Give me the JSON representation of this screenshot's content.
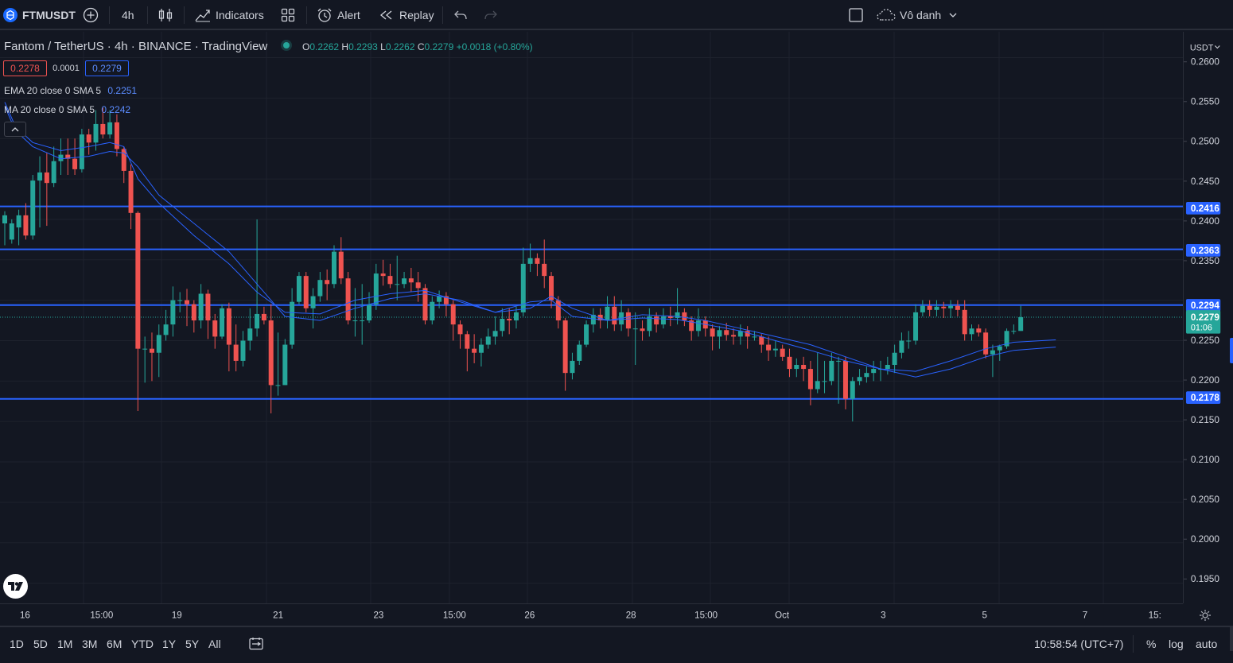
{
  "toolbar": {
    "symbol": "FTMUSDT",
    "interval": "4h",
    "indicators_label": "Indicators",
    "alert_label": "Alert",
    "replay_label": "Replay",
    "layout_name": "Vô danh"
  },
  "legend": {
    "title": "Fantom / TetherUS · 4h · BINANCE · TradingView",
    "o_label": "O",
    "o": "0.2262",
    "h_label": "H",
    "h": "0.2293",
    "l_label": "L",
    "l": "0.2262",
    "c_label": "C",
    "c": "0.2279",
    "change": "+0.0018 (+0.80%)",
    "bid": "0.2278",
    "spread": "0.0001",
    "ask": "0.2279",
    "ema_label": "EMA 20 close 0 SMA 5",
    "ema_value": "0.2251",
    "ma_label": "MA 20 close 0 SMA 5",
    "ma_value": "0.2242"
  },
  "price_scale": {
    "currency": "USDT",
    "ticks": [
      "0.2600",
      "0.2550",
      "0.2500",
      "0.2450",
      "0.2400",
      "0.2350",
      "0.2250",
      "0.2200",
      "0.2150",
      "0.2100",
      "0.2050",
      "0.2000",
      "0.1950"
    ],
    "hline_labels": [
      "0.2416",
      "0.2363",
      "0.2294",
      "0.2178"
    ],
    "current_price": "0.2279",
    "countdown": "01:06"
  },
  "time_axis": {
    "labels": [
      "16",
      "15:00",
      "19",
      "21",
      "23",
      "15:00",
      "26",
      "28",
      "15:00",
      "Oct",
      "3",
      "5",
      "7",
      "15:"
    ]
  },
  "bottombar": {
    "ranges": [
      "1D",
      "5D",
      "1M",
      "3M",
      "6M",
      "YTD",
      "1Y",
      "5Y",
      "All"
    ],
    "time": "10:58:54 (UTC+7)",
    "percent": "%",
    "log": "log",
    "auto": "auto"
  },
  "colors": {
    "background": "#131722",
    "up": "#26a69a",
    "down": "#ef5350",
    "hline": "#2962ff",
    "ma": "#2962ff",
    "text": "#d1d4dc"
  },
  "chart_data": {
    "type": "candlestick",
    "symbol": "FTMUSDT",
    "interval": "4h",
    "ylim": [
      0.1925,
      0.2632
    ],
    "horizontal_lines": [
      0.2416,
      0.2363,
      0.2294,
      0.2178
    ],
    "candles": [
      [
        0.2395,
        0.2405,
        0.2368,
        0.241
      ],
      [
        0.2375,
        0.2395,
        0.237,
        0.24
      ],
      [
        0.239,
        0.2405,
        0.2368,
        0.2412
      ],
      [
        0.2405,
        0.238,
        0.2375,
        0.242
      ],
      [
        0.238,
        0.2448,
        0.2375,
        0.2455
      ],
      [
        0.2448,
        0.2458,
        0.239,
        0.2478
      ],
      [
        0.2458,
        0.2445,
        0.2392,
        0.2482
      ],
      [
        0.2445,
        0.2472,
        0.244,
        0.249
      ],
      [
        0.2472,
        0.248,
        0.2455,
        0.25
      ],
      [
        0.248,
        0.2475,
        0.2455,
        0.25
      ],
      [
        0.2475,
        0.2462,
        0.2455,
        0.25
      ],
      [
        0.2462,
        0.2505,
        0.2458,
        0.2512
      ],
      [
        0.2505,
        0.2495,
        0.248,
        0.2512
      ],
      [
        0.2495,
        0.2518,
        0.2485,
        0.2535
      ],
      [
        0.2518,
        0.2505,
        0.25,
        0.2538
      ],
      [
        0.2505,
        0.252,
        0.25,
        0.2535
      ],
      [
        0.252,
        0.2487,
        0.2478,
        0.253
      ],
      [
        0.2487,
        0.246,
        0.2445,
        0.249
      ],
      [
        0.246,
        0.2408,
        0.2388,
        0.2468
      ],
      [
        0.2408,
        0.224,
        0.2163,
        0.241
      ],
      [
        0.224,
        0.224,
        0.2198,
        0.2255
      ],
      [
        0.224,
        0.2235,
        0.22,
        0.226
      ],
      [
        0.2235,
        0.2257,
        0.2205,
        0.227
      ],
      [
        0.2257,
        0.227,
        0.225,
        0.2288
      ],
      [
        0.227,
        0.23,
        0.2255,
        0.2317
      ],
      [
        0.23,
        0.23,
        0.2285,
        0.231
      ],
      [
        0.23,
        0.2295,
        0.2268,
        0.2314
      ],
      [
        0.2295,
        0.2275,
        0.226,
        0.23
      ],
      [
        0.2275,
        0.2308,
        0.2265,
        0.232
      ],
      [
        0.2308,
        0.2275,
        0.2252,
        0.2313
      ],
      [
        0.2275,
        0.2255,
        0.224,
        0.2283
      ],
      [
        0.2255,
        0.229,
        0.2252,
        0.2295
      ],
      [
        0.229,
        0.2245,
        0.2212,
        0.2297
      ],
      [
        0.2245,
        0.2225,
        0.2212,
        0.227
      ],
      [
        0.2225,
        0.225,
        0.2218,
        0.2262
      ],
      [
        0.225,
        0.2265,
        0.2238,
        0.229
      ],
      [
        0.2265,
        0.2283,
        0.2255,
        0.24
      ],
      [
        0.2283,
        0.2275,
        0.227,
        0.2292
      ],
      [
        0.2275,
        0.2195,
        0.216,
        0.2295
      ],
      [
        0.2195,
        0.2195,
        0.2182,
        0.226
      ],
      [
        0.2195,
        0.2245,
        0.2195,
        0.2252
      ],
      [
        0.2245,
        0.2298,
        0.224,
        0.2315
      ],
      [
        0.2298,
        0.233,
        0.2295,
        0.2335
      ],
      [
        0.233,
        0.229,
        0.2285,
        0.2335
      ],
      [
        0.229,
        0.2305,
        0.2265,
        0.2315
      ],
      [
        0.2305,
        0.2325,
        0.2298,
        0.2335
      ],
      [
        0.2325,
        0.232,
        0.23,
        0.2338
      ],
      [
        0.232,
        0.236,
        0.2315,
        0.2368
      ],
      [
        0.236,
        0.2327,
        0.232,
        0.2378
      ],
      [
        0.2327,
        0.2275,
        0.227,
        0.2335
      ],
      [
        0.2275,
        0.2275,
        0.2255,
        0.2315
      ],
      [
        0.2275,
        0.2275,
        0.2245,
        0.232
      ],
      [
        0.2275,
        0.2295,
        0.2272,
        0.231
      ],
      [
        0.2295,
        0.2333,
        0.2288,
        0.2345
      ],
      [
        0.2333,
        0.233,
        0.2318,
        0.235
      ],
      [
        0.233,
        0.232,
        0.2315,
        0.2345
      ],
      [
        0.232,
        0.232,
        0.23,
        0.2355
      ],
      [
        0.232,
        0.2327,
        0.2315,
        0.2335
      ],
      [
        0.2327,
        0.2322,
        0.231,
        0.234
      ],
      [
        0.2322,
        0.2315,
        0.2298,
        0.2335
      ],
      [
        0.2315,
        0.2275,
        0.227,
        0.232
      ],
      [
        0.2275,
        0.2298,
        0.227,
        0.2305
      ],
      [
        0.2298,
        0.2305,
        0.229,
        0.2312
      ],
      [
        0.2305,
        0.2295,
        0.228,
        0.231
      ],
      [
        0.2295,
        0.227,
        0.225,
        0.23
      ],
      [
        0.227,
        0.2258,
        0.224,
        0.2275
      ],
      [
        0.2258,
        0.224,
        0.2212,
        0.2262
      ],
      [
        0.224,
        0.2235,
        0.2222,
        0.2258
      ],
      [
        0.2235,
        0.2245,
        0.2218,
        0.2253
      ],
      [
        0.2245,
        0.2255,
        0.224,
        0.2265
      ],
      [
        0.2255,
        0.2262,
        0.2245,
        0.228
      ],
      [
        0.2262,
        0.2277,
        0.2255,
        0.229
      ],
      [
        0.2277,
        0.2275,
        0.2258,
        0.229
      ],
      [
        0.2275,
        0.2285,
        0.2265,
        0.2292
      ],
      [
        0.2285,
        0.2345,
        0.228,
        0.2365
      ],
      [
        0.2345,
        0.2352,
        0.2335,
        0.237
      ],
      [
        0.2352,
        0.2345,
        0.233,
        0.2358
      ],
      [
        0.2345,
        0.233,
        0.2315,
        0.2375
      ],
      [
        0.233,
        0.23,
        0.229,
        0.2335
      ],
      [
        0.23,
        0.2275,
        0.2265,
        0.2305
      ],
      [
        0.2275,
        0.221,
        0.2188,
        0.2278
      ],
      [
        0.221,
        0.2225,
        0.2202,
        0.2235
      ],
      [
        0.2225,
        0.2245,
        0.222,
        0.225
      ],
      [
        0.2245,
        0.227,
        0.2242,
        0.2275
      ],
      [
        0.227,
        0.2282,
        0.226,
        0.229
      ],
      [
        0.2282,
        0.2275,
        0.2265,
        0.229
      ],
      [
        0.2275,
        0.2292,
        0.2265,
        0.2305
      ],
      [
        0.2292,
        0.227,
        0.2262,
        0.2305
      ],
      [
        0.227,
        0.2285,
        0.2262,
        0.23
      ],
      [
        0.2285,
        0.2265,
        0.2255,
        0.229
      ],
      [
        0.2265,
        0.2265,
        0.222,
        0.2285
      ],
      [
        0.2265,
        0.2262,
        0.225,
        0.2275
      ],
      [
        0.2262,
        0.228,
        0.2255,
        0.229
      ],
      [
        0.228,
        0.227,
        0.226,
        0.2285
      ],
      [
        0.227,
        0.228,
        0.2265,
        0.229
      ],
      [
        0.228,
        0.2278,
        0.2268,
        0.2292
      ],
      [
        0.2278,
        0.2285,
        0.227,
        0.2315
      ],
      [
        0.2285,
        0.2275,
        0.2268,
        0.229
      ],
      [
        0.2275,
        0.2262,
        0.225,
        0.228
      ],
      [
        0.2262,
        0.2275,
        0.2255,
        0.229
      ],
      [
        0.2275,
        0.2265,
        0.2255,
        0.228
      ],
      [
        0.2265,
        0.2255,
        0.2238,
        0.227
      ],
      [
        0.2255,
        0.2263,
        0.224,
        0.2268
      ],
      [
        0.2263,
        0.2257,
        0.225,
        0.2272
      ],
      [
        0.2257,
        0.2255,
        0.2245,
        0.2265
      ],
      [
        0.2255,
        0.2262,
        0.2245,
        0.227
      ],
      [
        0.2262,
        0.2255,
        0.224,
        0.2268
      ],
      [
        0.2255,
        0.2255,
        0.225,
        0.2262
      ],
      [
        0.2255,
        0.2245,
        0.2235,
        0.2258
      ],
      [
        0.2245,
        0.2238,
        0.2225,
        0.2255
      ],
      [
        0.2238,
        0.224,
        0.223,
        0.225
      ],
      [
        0.224,
        0.223,
        0.2225,
        0.2245
      ],
      [
        0.223,
        0.2215,
        0.2205,
        0.224
      ],
      [
        0.2215,
        0.222,
        0.2205,
        0.2228
      ],
      [
        0.222,
        0.2215,
        0.22,
        0.223
      ],
      [
        0.2215,
        0.219,
        0.217,
        0.2225
      ],
      [
        0.219,
        0.22,
        0.2185,
        0.2235
      ],
      [
        0.22,
        0.22,
        0.2185,
        0.2225
      ],
      [
        0.22,
        0.2225,
        0.2195,
        0.2235
      ],
      [
        0.2225,
        0.2225,
        0.2172,
        0.223
      ],
      [
        0.2225,
        0.2178,
        0.2165,
        0.223
      ],
      [
        0.2178,
        0.22,
        0.215,
        0.2205
      ],
      [
        0.22,
        0.2205,
        0.2195,
        0.2215
      ],
      [
        0.2205,
        0.221,
        0.2198,
        0.2218
      ],
      [
        0.221,
        0.2215,
        0.22,
        0.2225
      ],
      [
        0.2215,
        0.2215,
        0.22,
        0.2225
      ],
      [
        0.2215,
        0.222,
        0.2208,
        0.223
      ],
      [
        0.222,
        0.2235,
        0.221,
        0.2245
      ],
      [
        0.2235,
        0.225,
        0.2228,
        0.226
      ],
      [
        0.225,
        0.225,
        0.224,
        0.2262
      ],
      [
        0.225,
        0.2285,
        0.2245,
        0.2295
      ],
      [
        0.2285,
        0.2293,
        0.228,
        0.23
      ],
      [
        0.2293,
        0.2288,
        0.228,
        0.23
      ],
      [
        0.2288,
        0.2292,
        0.228,
        0.23
      ],
      [
        0.2292,
        0.229,
        0.2278,
        0.2298
      ],
      [
        0.229,
        0.2293,
        0.2278,
        0.23
      ],
      [
        0.2293,
        0.2288,
        0.228,
        0.23
      ],
      [
        0.2288,
        0.2258,
        0.225,
        0.23
      ],
      [
        0.2258,
        0.2265,
        0.225,
        0.227
      ],
      [
        0.2265,
        0.226,
        0.2255,
        0.227
      ],
      [
        0.226,
        0.2233,
        0.2228,
        0.2265
      ],
      [
        0.2233,
        0.2238,
        0.2205,
        0.2245
      ],
      [
        0.2238,
        0.2243,
        0.2225,
        0.2245
      ],
      [
        0.2243,
        0.2262,
        0.224,
        0.2265
      ],
      [
        0.2262,
        0.2262,
        0.2258,
        0.227
      ],
      [
        0.2262,
        0.2279,
        0.2262,
        0.2293
      ]
    ],
    "ema20": [
      [
        0,
        0.2545
      ],
      [
        1.5,
        0.2515
      ],
      [
        4,
        0.2495
      ],
      [
        8,
        0.2485
      ],
      [
        12,
        0.249
      ],
      [
        15,
        0.2495
      ],
      [
        17,
        0.249
      ],
      [
        19,
        0.245
      ],
      [
        22,
        0.242
      ],
      [
        27,
        0.238
      ],
      [
        32,
        0.2345
      ],
      [
        36,
        0.231
      ],
      [
        40,
        0.2285
      ],
      [
        45,
        0.2283
      ],
      [
        50,
        0.23
      ],
      [
        55,
        0.2308
      ],
      [
        60,
        0.2312
      ],
      [
        65,
        0.2298
      ],
      [
        70,
        0.2285
      ],
      [
        75,
        0.2298
      ],
      [
        78,
        0.23
      ],
      [
        81,
        0.228
      ],
      [
        86,
        0.2275
      ],
      [
        91,
        0.2278
      ],
      [
        96,
        0.2276
      ],
      [
        100,
        0.227
      ],
      [
        105,
        0.2262
      ],
      [
        110,
        0.225
      ],
      [
        115,
        0.2238
      ],
      [
        120,
        0.2225
      ],
      [
        125,
        0.2215
      ],
      [
        130,
        0.2212
      ],
      [
        135,
        0.2225
      ],
      [
        140,
        0.224
      ],
      [
        144,
        0.2248
      ],
      [
        150,
        0.2251
      ]
    ],
    "ma20": [
      [
        0,
        0.254
      ],
      [
        1.5,
        0.251
      ],
      [
        4,
        0.249
      ],
      [
        8,
        0.2475
      ],
      [
        12,
        0.2478
      ],
      [
        15,
        0.2484
      ],
      [
        17,
        0.2482
      ],
      [
        19,
        0.2465
      ],
      [
        22,
        0.243
      ],
      [
        27,
        0.2395
      ],
      [
        32,
        0.236
      ],
      [
        36,
        0.232
      ],
      [
        40,
        0.228
      ],
      [
        45,
        0.2275
      ],
      [
        50,
        0.229
      ],
      [
        55,
        0.2302
      ],
      [
        60,
        0.2308
      ],
      [
        65,
        0.23
      ],
      [
        70,
        0.2285
      ],
      [
        75,
        0.229
      ],
      [
        78,
        0.2305
      ],
      [
        81,
        0.229
      ],
      [
        86,
        0.2275
      ],
      [
        91,
        0.2282
      ],
      [
        96,
        0.228
      ],
      [
        100,
        0.2275
      ],
      [
        105,
        0.2265
      ],
      [
        110,
        0.2255
      ],
      [
        115,
        0.2245
      ],
      [
        120,
        0.223
      ],
      [
        125,
        0.2215
      ],
      [
        130,
        0.2205
      ],
      [
        135,
        0.2215
      ],
      [
        140,
        0.223
      ],
      [
        144,
        0.2238
      ],
      [
        150,
        0.2242
      ]
    ]
  }
}
